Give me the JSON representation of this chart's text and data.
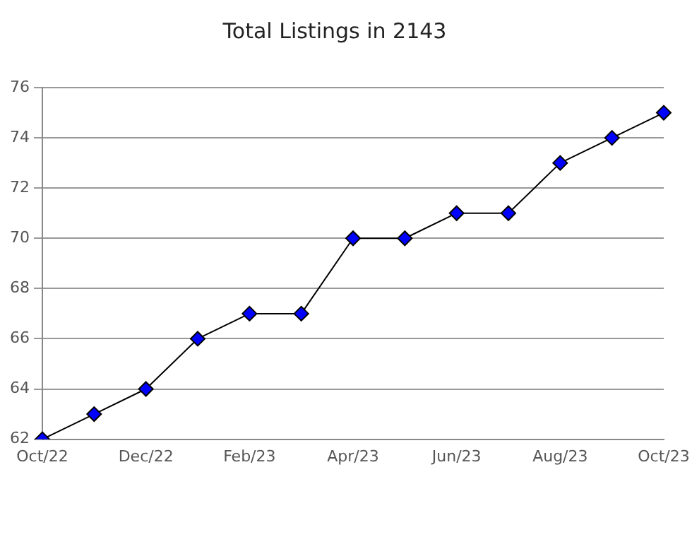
{
  "chart_data": {
    "type": "line",
    "title": "Total Listings in 2143",
    "categories": [
      "Oct/22",
      null,
      "Dec/22",
      null,
      "Feb/23",
      null,
      "Apr/23",
      null,
      "Jun/23",
      null,
      "Aug/23",
      null,
      "Oct/23"
    ],
    "series": [
      {
        "color": "#0000ff",
        "values": [
          62,
          63,
          64,
          66,
          67,
          67,
          70,
          70,
          71,
          71,
          73,
          74,
          75
        ]
      }
    ],
    "ylim": [
      62,
      76
    ],
    "yticks": [
      62,
      64,
      66,
      68,
      70,
      72,
      74,
      76
    ],
    "grid": "y",
    "legend": false,
    "marker": "diamond",
    "line_style": "solid"
  }
}
